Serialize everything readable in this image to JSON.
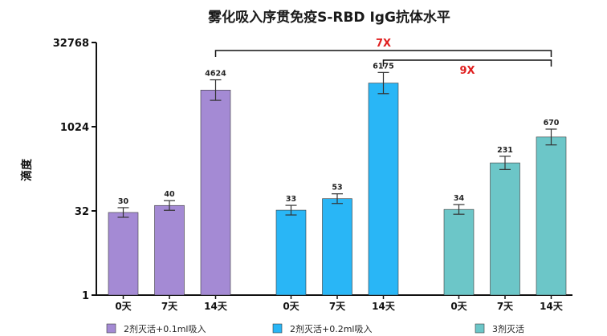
{
  "chart_data": {
    "type": "bar",
    "title": "雾化吸入序贯免疫S-RBD IgG抗体水平",
    "xlabel": "",
    "ylabel": "滴度",
    "yscale": "log2",
    "ylim": [
      1,
      32768
    ],
    "yticks": [
      "1",
      "32",
      "1024",
      "32768"
    ],
    "categories": [
      "0天",
      "7天",
      "14天"
    ],
    "series": [
      {
        "name": "2剂灭活+0.1ml吸入",
        "color": "#a48ad4",
        "values": [
          30,
          40,
          4624
        ],
        "labels": [
          "30",
          "40",
          "4624"
        ]
      },
      {
        "name": "2剂灭活+0.2ml吸入",
        "color": "#29b6f6",
        "values": [
          33,
          53,
          6175
        ],
        "labels": [
          "33",
          "53",
          "6175"
        ]
      },
      {
        "name": "3剂灭活",
        "color": "#6cc6c8",
        "values": [
          34,
          231,
          670
        ],
        "labels": [
          "34",
          "231",
          "670"
        ]
      }
    ],
    "annotations": [
      {
        "text": "7X",
        "from_series": 0,
        "to_series": 2,
        "category": "14天",
        "color": "#e02020"
      },
      {
        "text": "9X",
        "from_series": 1,
        "to_series": 2,
        "category": "14天",
        "color": "#e02020"
      }
    ],
    "grid": false,
    "legend_position": "bottom"
  }
}
